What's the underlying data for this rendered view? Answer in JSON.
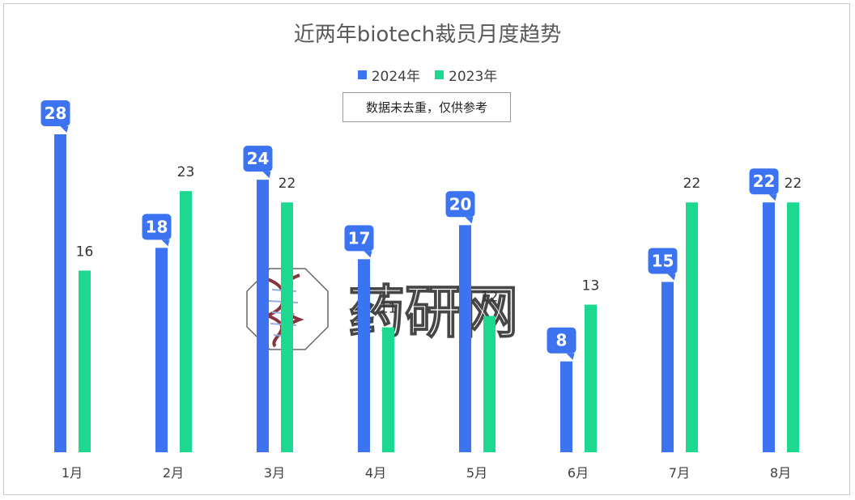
{
  "chart_data": {
    "type": "bar",
    "title": "近两年biotech裁员月度趋势",
    "categories": [
      "1月",
      "2月",
      "3月",
      "4月",
      "5月",
      "6月",
      "7月",
      "8月"
    ],
    "series": [
      {
        "name": "2024年",
        "color": "#3b73f1",
        "values": [
          28,
          18,
          24,
          17,
          20,
          8,
          15,
          22
        ]
      },
      {
        "name": "2023年",
        "color": "#1dd88f",
        "values": [
          16,
          23,
          22,
          11,
          12,
          13,
          22,
          22
        ]
      }
    ],
    "ylim": [
      0,
      28
    ],
    "legend_position": "top",
    "grid": false
  },
  "note": "数据未去重，仅供参考",
  "watermark": {
    "text": "药研网"
  }
}
